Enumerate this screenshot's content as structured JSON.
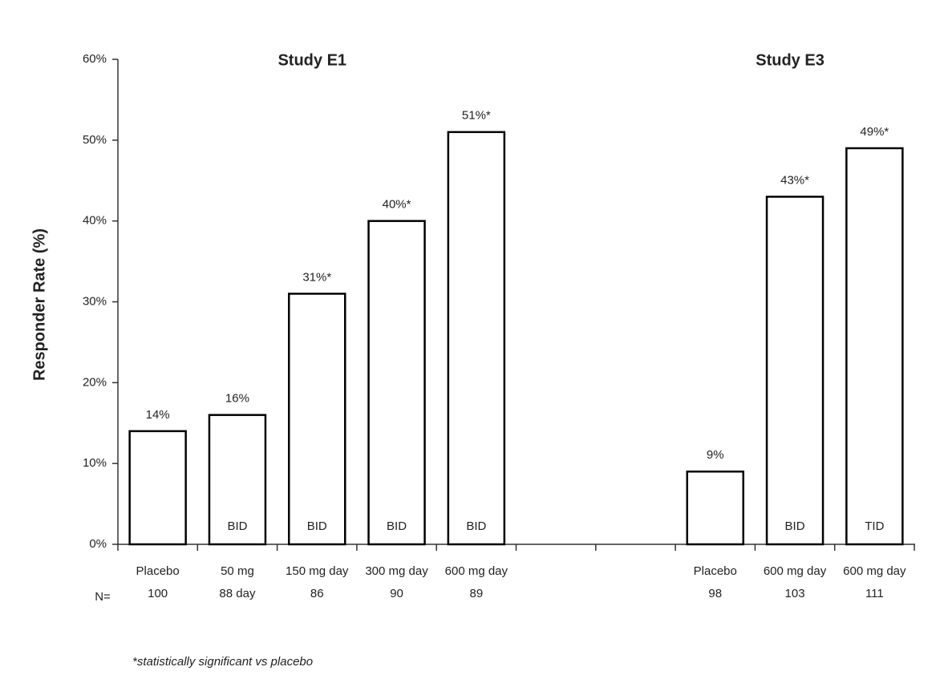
{
  "chart_data": {
    "type": "bar",
    "y_label": "Responder Rate (%)",
    "study_labels": [
      "Study E1",
      "Study E3"
    ],
    "categories": [
      "Placebo",
      "50 mg",
      "150 mg day",
      "300 mg day",
      "600 mg day",
      null,
      null,
      "Placebo",
      "600 mg day",
      "600 mg day"
    ],
    "n_label": "N=",
    "sample_sizes": [
      "100",
      "88 day",
      "86",
      "90",
      "89",
      null,
      null,
      "98",
      "103",
      "111"
    ],
    "regimens": [
      null,
      "BID",
      "BID",
      "BID",
      "BID",
      null,
      null,
      null,
      "BID",
      "TID"
    ],
    "values": [
      14,
      16,
      31,
      40,
      51,
      null,
      null,
      9,
      43,
      49
    ],
    "value_labels": [
      "14%",
      "16%",
      "31%*",
      "40%*",
      "51%*",
      null,
      null,
      "9%",
      "43%*",
      "49%*"
    ],
    "color": "#ffffff",
    "edgecolor": "#000000",
    "ylim": [
      0,
      60
    ],
    "yticks": [
      {
        "value": 0,
        "label": "0%"
      },
      {
        "value": 10,
        "label": "10%"
      },
      {
        "value": 20,
        "label": "20%"
      },
      {
        "value": 30,
        "label": "30%"
      },
      {
        "value": 40,
        "label": "40%"
      },
      {
        "value": 50,
        "label": "50%"
      },
      {
        "value": 60,
        "label": "60%"
      }
    ],
    "footnote": "*statistically significant vs placebo"
  }
}
